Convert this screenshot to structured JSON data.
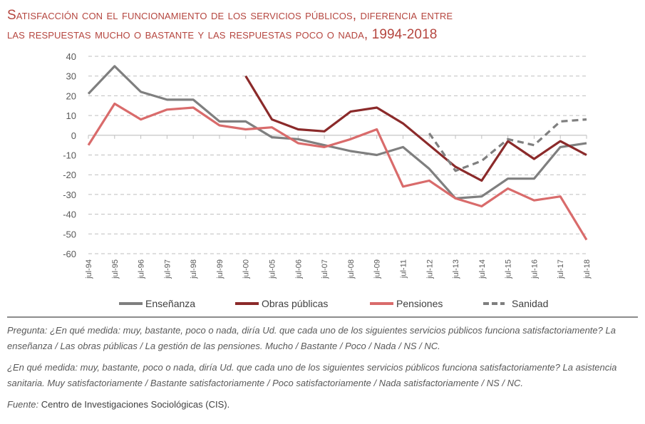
{
  "title": {
    "line1": "Satisfacción con el funcionamiento de los servicios públicos, diferencia entre",
    "line2": "las respuestas mucho o bastante y las respuestas poco o nada, 1994-2018"
  },
  "chart_data": {
    "type": "line",
    "title": "Satisfacción con el funcionamiento de los servicios públicos, diferencia entre las respuestas mucho o bastante y las respuestas poco o nada, 1994-2018",
    "xlabel": "",
    "ylabel": "",
    "ylim": [
      -60,
      40
    ],
    "yticks": [
      "40",
      "30",
      "20",
      "10",
      "0",
      "-10",
      "-20",
      "-30",
      "-40",
      "-50",
      "-60"
    ],
    "grid": true,
    "legend_position": "bottom",
    "categories": [
      "jul-94",
      "jul-95",
      "jul-96",
      "jul-97",
      "jul-98",
      "jul-99",
      "jul-00",
      "jul-05",
      "jul-06",
      "jul-07",
      "jul-08",
      "jul-09",
      "jul-11",
      "jul-12",
      "jul-13",
      "jul-14",
      "jul-15",
      "jul-16",
      "jul-17",
      "jul-18"
    ],
    "series": [
      {
        "name": "Enseñanza",
        "color": "#7f7f7f",
        "style": "solid",
        "values": [
          21,
          35,
          22,
          18,
          18,
          7,
          7,
          -1,
          -2,
          -5,
          -8,
          -10,
          -6,
          -17,
          -32,
          -31,
          -22,
          -22,
          -6,
          -4
        ]
      },
      {
        "name": "Obras públicas",
        "color": "#8b2a2a",
        "style": "solid",
        "values": [
          null,
          null,
          null,
          null,
          null,
          null,
          30,
          8,
          3,
          2,
          12,
          14,
          6,
          -5,
          -16,
          -23,
          -3,
          -12,
          -3,
          -10
        ]
      },
      {
        "name": "Pensiones",
        "color": "#d96b6b",
        "style": "solid",
        "values": [
          -5,
          16,
          8,
          13,
          14,
          5,
          3,
          4,
          -4,
          -6,
          -2,
          3,
          -26,
          -23,
          -32,
          -36,
          -27,
          -33,
          -31,
          -53
        ]
      },
      {
        "name": "Sanidad",
        "color": "#7f7f7f",
        "style": "dashed",
        "values": [
          null,
          null,
          null,
          null,
          null,
          null,
          null,
          null,
          null,
          null,
          null,
          null,
          null,
          1,
          -18,
          -13,
          -2,
          -5,
          7,
          8
        ]
      }
    ]
  },
  "notes": {
    "question1_label": "Pregunta",
    "question1_text": ": ¿En qué medida: muy, bastante, poco o nada, diría Ud. que cada uno de los siguientes servicios públicos funciona satisfactoriamente? La enseñanza / Las obras públicas / La gestión de las pensiones. Mucho / Bastante / Poco / Nada / NS / NC.",
    "question2_text": "¿En qué medida: muy, bastante, poco o nada, diría Ud. que cada uno de los siguientes servicios públicos funciona satisfactoriamente? La asistencia sanitaria. Muy satisfactoriamente / Bastante satisfactoriamente / Poco satisfactoriamente / Nada satisfactoriamente / NS / NC.",
    "source_label": "Fuente:",
    "source_text": "Centro de Investigaciones Sociológicas (CIS)."
  }
}
